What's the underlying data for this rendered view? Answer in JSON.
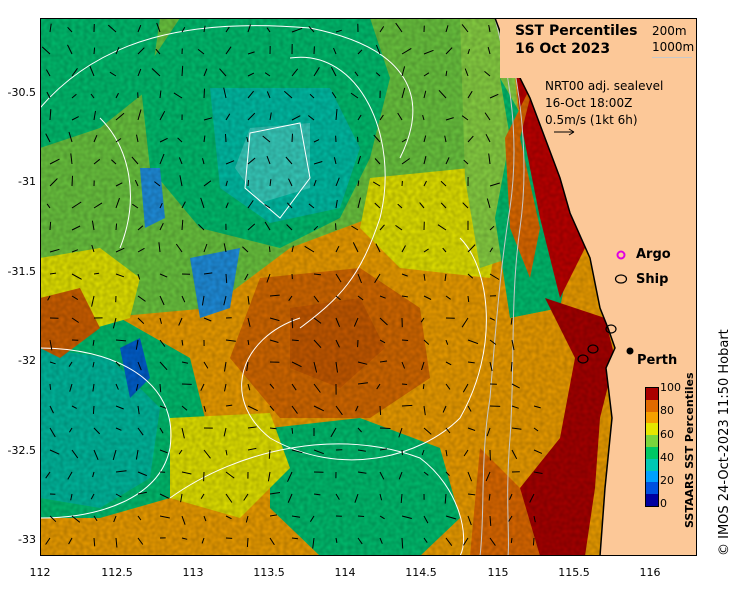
{
  "title": "SST Percentiles",
  "date": "16 Oct 2023",
  "isobath_legend": [
    "200m",
    "1000m"
  ],
  "current_info": {
    "line1": "NRT00 adj. sealevel",
    "line2": "16-Oct 18:00Z",
    "line3": "0.5m/s (1kt 6h)"
  },
  "markers": {
    "argo": {
      "label": "Argo",
      "color": "#e000e0"
    },
    "ship": {
      "label": "Ship"
    }
  },
  "city": {
    "name": "Perth",
    "lon": 115.86,
    "lat": -31.95
  },
  "y_axis_labels": [
    "-30.5",
    "-31",
    "-31.5",
    "-32",
    "-32.5",
    "-33"
  ],
  "x_axis_labels": [
    "112",
    "112.5",
    "113",
    "113.5",
    "114",
    "114.5",
    "115",
    "115.5",
    "116"
  ],
  "colorbar": {
    "title": "SSTAARS SST Percentiles",
    "ticks": [
      "100",
      "80",
      "60",
      "40",
      "20",
      "0"
    ],
    "colors": [
      "#0000a0",
      "#0050e0",
      "#00a0ff",
      "#00c8b4",
      "#00c864",
      "#7ad53c",
      "#e6e600",
      "#f5a000",
      "#e06a00",
      "#aa0000"
    ]
  },
  "credit": "© IMOS 24-Oct-2023 11:50 Hobart",
  "colors": {
    "land": "#fcc898",
    "coast": "#000000",
    "isobath": "#c8c8c8"
  }
}
